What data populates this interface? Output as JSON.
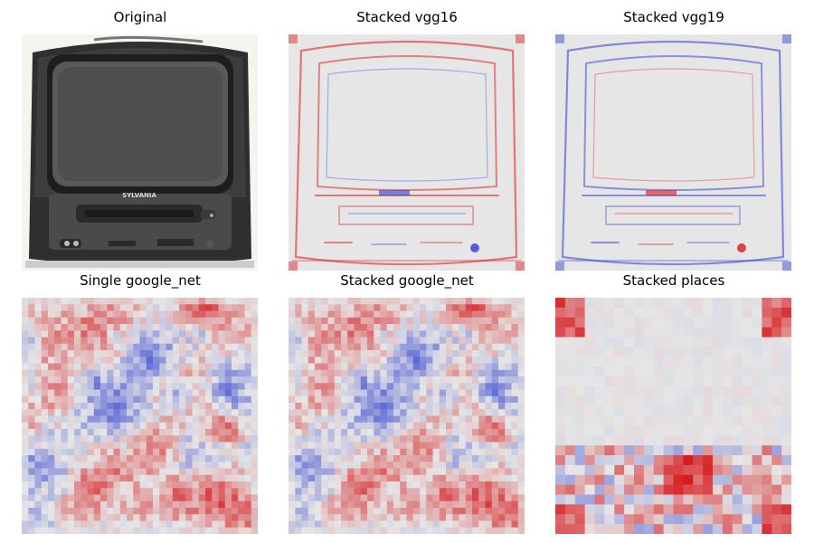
{
  "figure": {
    "panels": [
      {
        "id": "original",
        "title": "Original",
        "kind": "photo",
        "brand_text": "SYLVANIA"
      },
      {
        "id": "stacked-vgg16",
        "title": "Stacked vgg16",
        "kind": "saliency-edges",
        "dominant": "red",
        "seed": 11
      },
      {
        "id": "stacked-vgg19",
        "title": "Stacked vgg19",
        "kind": "saliency-edges",
        "dominant": "blue",
        "seed": 23
      },
      {
        "id": "single-google-net",
        "title": "Single google_net",
        "kind": "saliency-noise",
        "grid": 36,
        "seed": 7
      },
      {
        "id": "stacked-google-net",
        "title": "Stacked google_net",
        "kind": "saliency-noise",
        "grid": 36,
        "seed": 7
      },
      {
        "id": "stacked-places",
        "title": "Stacked places",
        "kind": "saliency-places",
        "grid": 24,
        "seed": 41
      }
    ],
    "colors": {
      "positive": "#d7191c",
      "negative": "#2c3cd0",
      "neutral": "#e6e6e6",
      "tv_body": "#3b3b3b",
      "tv_screen": "#555555"
    }
  }
}
